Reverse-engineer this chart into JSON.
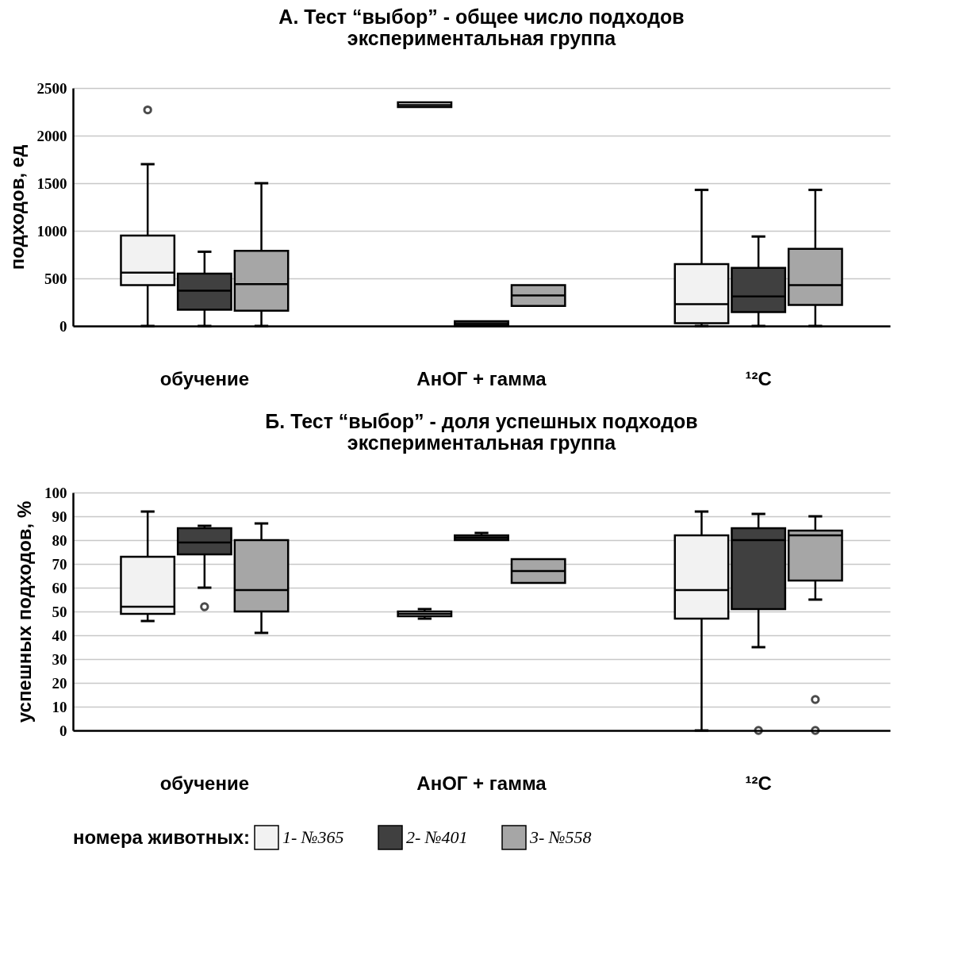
{
  "chart_data": [
    {
      "type": "box",
      "title": "А. Тест “выбор” - общее число подходов\nэкспериментальная группа",
      "ylabel": "подходов, ед",
      "categories": [
        "обучение",
        "АнОГ + гамма",
        "¹²C"
      ],
      "ylim": [
        0,
        2500
      ],
      "yticks": [
        0,
        500,
        1000,
        1500,
        2000,
        2500
      ],
      "grid": "y",
      "legend": "bottom",
      "series": [
        {
          "name": "1- №365",
          "color": "#f2f2f2",
          "boxes": [
            {
              "low": 0,
              "q1": 430,
              "median": 560,
              "q3": 950,
              "high": 1700,
              "outliers": [
                2270
              ]
            },
            {
              "low": 2300,
              "q1": 2300,
              "median": 2320,
              "q3": 2350,
              "high": 2350
            },
            {
              "low": 0,
              "q1": 30,
              "median": 230,
              "q3": 650,
              "high": 1430
            }
          ]
        },
        {
          "name": "2- №401",
          "color": "#404040",
          "boxes": [
            {
              "low": 0,
              "q1": 170,
              "median": 370,
              "q3": 550,
              "high": 780
            },
            {
              "low": 0,
              "q1": 0,
              "median": 20,
              "q3": 50,
              "high": 50
            },
            {
              "low": 0,
              "q1": 145,
              "median": 310,
              "q3": 610,
              "high": 940
            }
          ]
        },
        {
          "name": "3- №558",
          "color": "#a6a6a6",
          "boxes": [
            {
              "low": 0,
              "q1": 160,
              "median": 440,
              "q3": 790,
              "high": 1500
            },
            {
              "low": 210,
              "q1": 210,
              "median": 320,
              "q3": 430,
              "high": 430
            },
            {
              "low": 0,
              "q1": 220,
              "median": 430,
              "q3": 810,
              "high": 1430
            }
          ]
        }
      ]
    },
    {
      "type": "box",
      "title": "Б. Тест “выбор” - доля успешных подходов\nэкспериментальная группа",
      "ylabel": "успешных подходов, %",
      "categories": [
        "обучение",
        "АнОГ + гамма",
        "¹²C"
      ],
      "ylim": [
        0,
        100
      ],
      "yticks": [
        0,
        10,
        20,
        30,
        40,
        50,
        60,
        70,
        80,
        90,
        100
      ],
      "grid": "y",
      "legend": "bottom",
      "legend_title": "номера животных:",
      "series": [
        {
          "name": "1- №365",
          "color": "#f2f2f2",
          "boxes": [
            {
              "low": 46,
              "q1": 49,
              "median": 52,
              "q3": 73,
              "high": 92
            },
            {
              "low": 47,
              "q1": 48,
              "median": 49,
              "q3": 50,
              "high": 51
            },
            {
              "low": 0,
              "q1": 47,
              "median": 59,
              "q3": 82,
              "high": 92
            }
          ]
        },
        {
          "name": "2- №401",
          "color": "#404040",
          "boxes": [
            {
              "low": 60,
              "q1": 74,
              "median": 79,
              "q3": 85,
              "high": 86,
              "outliers": [
                52
              ]
            },
            {
              "low": 80,
              "q1": 80,
              "median": 81,
              "q3": 82,
              "high": 83
            },
            {
              "low": 35,
              "q1": 51,
              "median": 80,
              "q3": 85,
              "high": 91,
              "outliers": [
                0
              ]
            }
          ]
        },
        {
          "name": "3- №558",
          "color": "#a6a6a6",
          "boxes": [
            {
              "low": 41,
              "q1": 50,
              "median": 59,
              "q3": 80,
              "high": 87
            },
            {
              "low": 62,
              "q1": 62,
              "median": 67,
              "q3": 72,
              "high": 72
            },
            {
              "low": 55,
              "q1": 63,
              "median": 82,
              "q3": 84,
              "high": 90,
              "outliers": [
                0,
                13
              ]
            }
          ]
        }
      ]
    }
  ]
}
